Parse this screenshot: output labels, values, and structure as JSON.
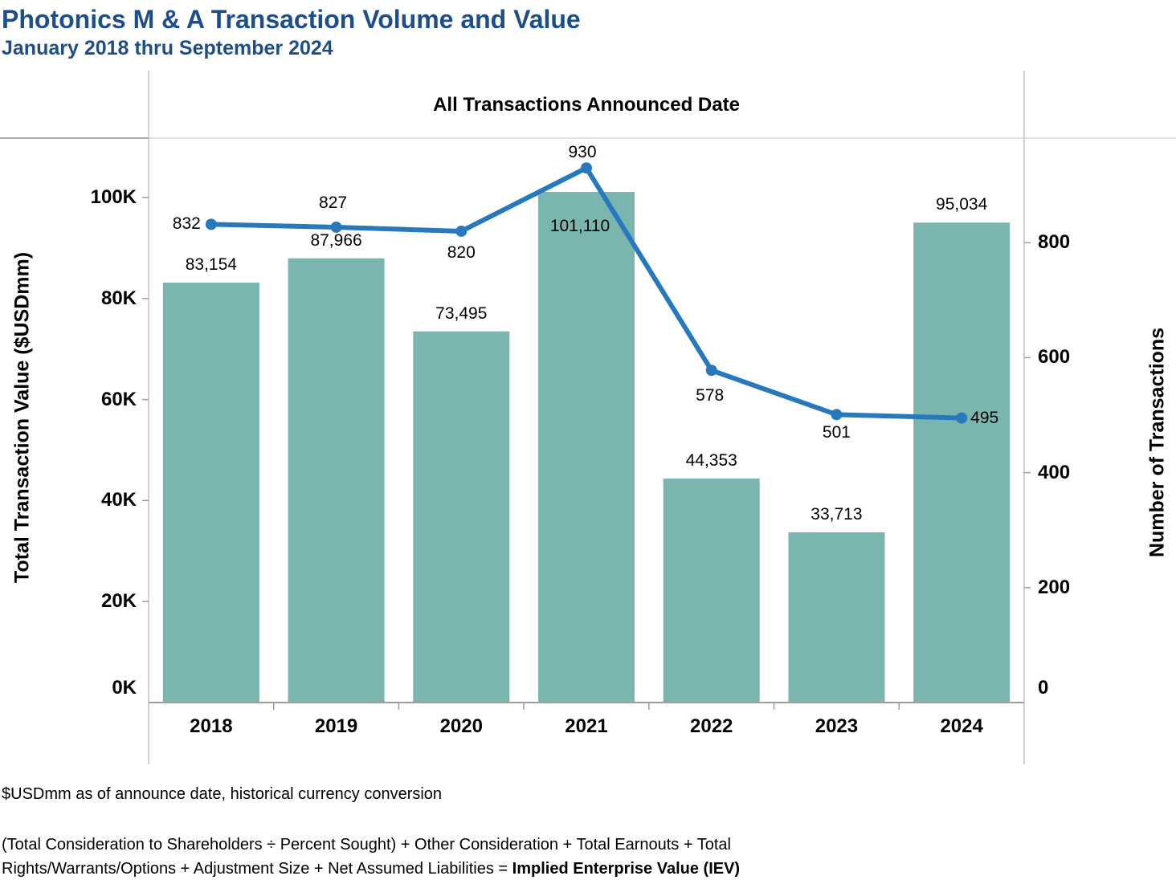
{
  "header": {
    "title": "Photonics M & A Transaction Volume and Value",
    "subtitle": "January 2018 thru September 2024"
  },
  "chart_data": {
    "type": "combo",
    "pane_title": "All Transactions Announced Date",
    "categories": [
      "2018",
      "2019",
      "2020",
      "2021",
      "2022",
      "2023",
      "2024"
    ],
    "series": [
      {
        "name": "Total Transaction Value",
        "type": "bar",
        "axis": "left",
        "color": "#7AB6AF",
        "values": [
          83154,
          87966,
          73495,
          101110,
          44353,
          33713,
          95034
        ],
        "labels": [
          "83,154",
          "87,966",
          "73,495",
          "101,110",
          "44,353",
          "33,713",
          "95,034"
        ],
        "label_placement": [
          "above",
          "above",
          "above",
          "inside",
          "above",
          "above",
          "above"
        ]
      },
      {
        "name": "Number of Transactions",
        "type": "line",
        "axis": "right",
        "color": "#2878BE",
        "values": [
          832,
          827,
          820,
          930,
          578,
          501,
          495
        ],
        "labels": [
          "832",
          "827",
          "820",
          "930",
          "578",
          "501",
          "495"
        ],
        "label_placement": [
          "left",
          "above",
          "below",
          "above",
          "below",
          "below",
          "right"
        ],
        "label_offsets": [
          [
            -13,
            0,
            "end"
          ],
          [
            -4,
            -30,
            "middle"
          ],
          [
            0,
            27,
            "middle"
          ],
          [
            -5,
            -19,
            "middle"
          ],
          [
            -2,
            32,
            "middle"
          ],
          [
            0,
            23,
            "middle"
          ],
          [
            11,
            0,
            "start"
          ]
        ]
      }
    ],
    "left_axis": {
      "title": "Total Transaction Value ($USDmm)",
      "ticks": [
        0,
        20000,
        40000,
        60000,
        80000,
        100000
      ],
      "tick_labels": [
        "0K",
        "20K",
        "40K",
        "60K",
        "80K",
        "100K"
      ],
      "max": 111765
    },
    "right_axis": {
      "title": "Number of Transactions",
      "ticks": [
        0,
        200,
        400,
        600,
        800
      ],
      "tick_labels": [
        "0",
        "200",
        "400",
        "600",
        "800"
      ],
      "max": 982
    },
    "grid": false,
    "legend": false
  },
  "footnotes": {
    "line1": "$USDmm as of announce date, historical currency conversion",
    "formula_line1": "(Total Consideration to Shareholders ÷ Percent Sought) + Other Consideration + Total Earnouts + Total",
    "formula_line2": "Rights/Warrants/Options + Adjustment Size + Net Assumed Liabilities = ",
    "formula_bold": "Implied Enterprise Value (IEV)"
  },
  "colors": {
    "title_blue": "#1D4E8A",
    "bar_teal": "#7AB6AF",
    "line_blue": "#2878BE",
    "axis_gray": "#9E9E9E",
    "frame_gray": "#C4C4C4",
    "divider_dark": "#ABABAB",
    "divider_light": "#D8D8D8",
    "label_black": "#000000"
  }
}
